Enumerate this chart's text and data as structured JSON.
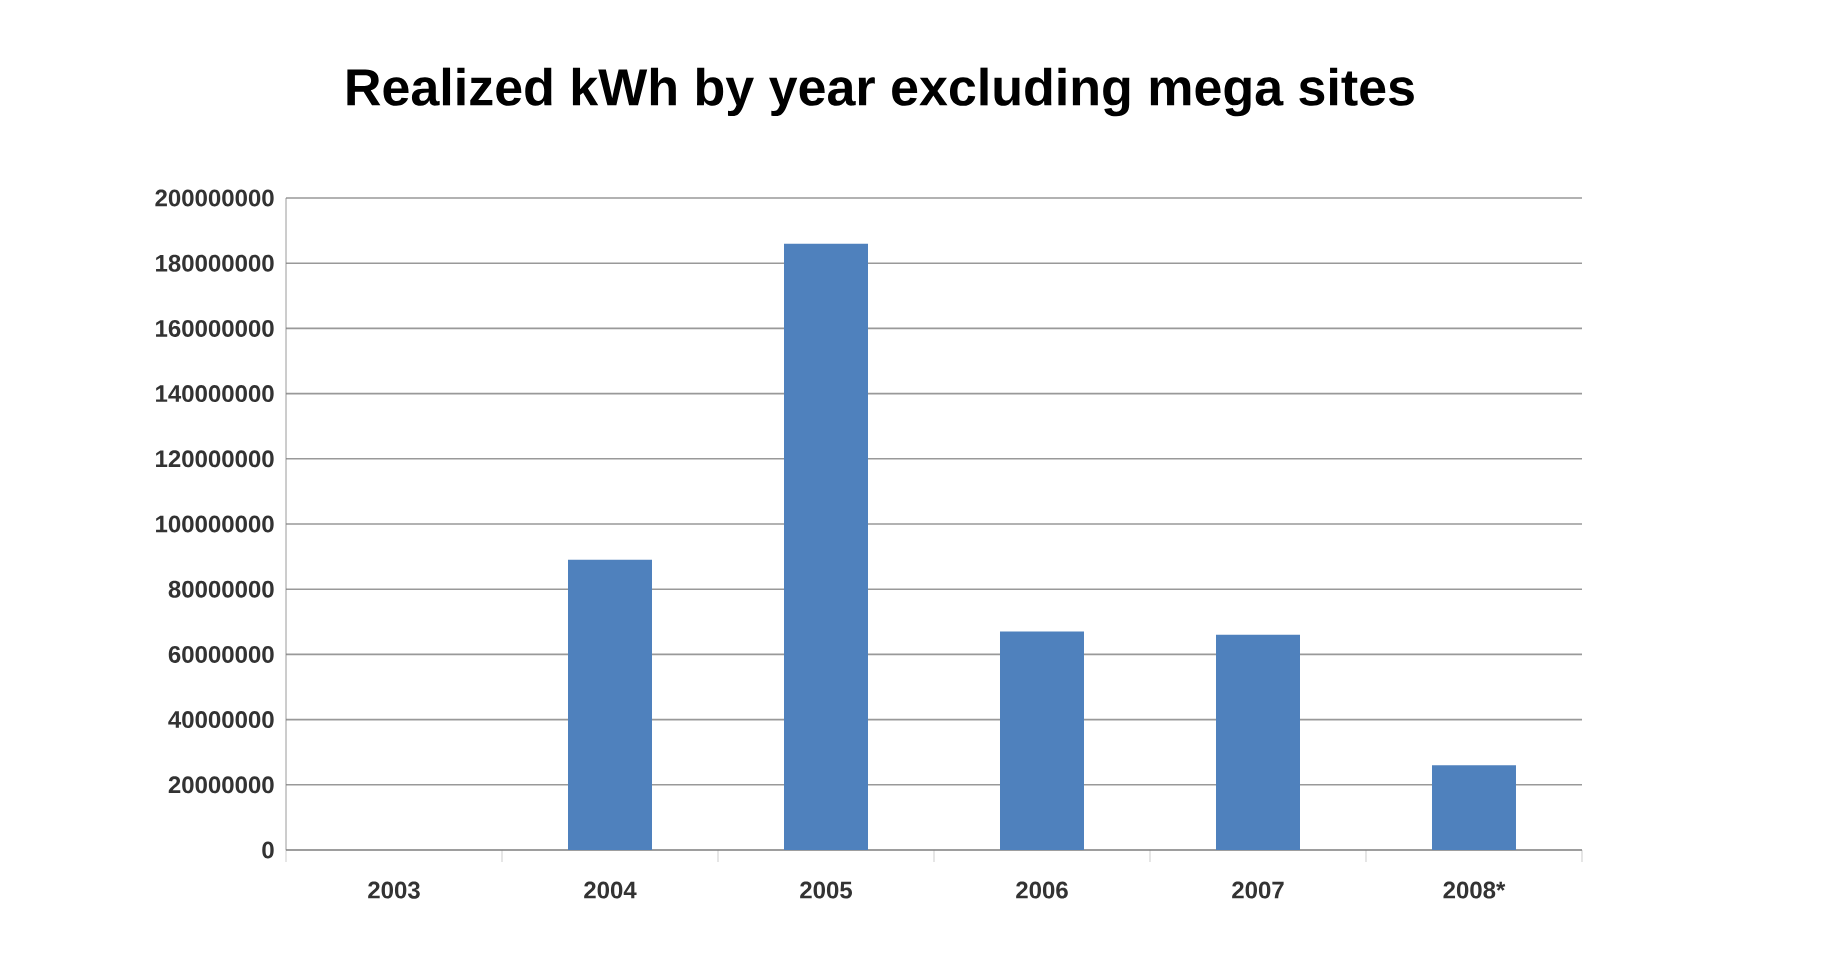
{
  "chart_data": {
    "type": "bar",
    "title": "Realized kWh by year excluding mega sites",
    "categories": [
      "2003",
      "2004",
      "2005",
      "2006",
      "2007",
      "2008*"
    ],
    "values": [
      0,
      89000000,
      186000000,
      67000000,
      66000000,
      26000000
    ],
    "color": "#4f81bd",
    "ylim": [
      0,
      200000000
    ],
    "yticks": [
      0,
      20000000,
      40000000,
      60000000,
      80000000,
      100000000,
      120000000,
      140000000,
      160000000,
      180000000,
      200000000
    ],
    "grid": "y"
  }
}
